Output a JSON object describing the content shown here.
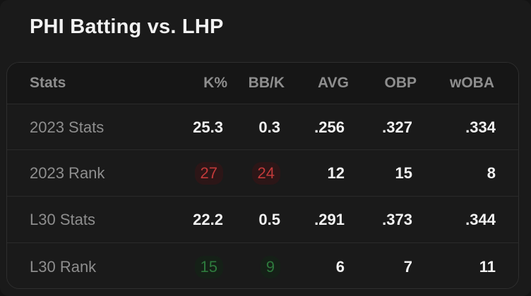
{
  "title": "PHI Batting vs. LHP",
  "columns": [
    "Stats",
    "K%",
    "BB/K",
    "AVG",
    "OBP",
    "wOBA"
  ],
  "rows": [
    {
      "label": "2023 Stats",
      "values": [
        "25.3",
        "0.3",
        ".256",
        ".327",
        ".334"
      ]
    },
    {
      "label": "2023 Rank",
      "values": [
        "27",
        "24",
        "12",
        "15",
        "8"
      ]
    },
    {
      "label": "L30 Stats",
      "values": [
        "22.2",
        "0.5",
        ".291",
        ".373",
        ".344"
      ]
    },
    {
      "label": "L30 Rank",
      "values": [
        "15",
        "9",
        "6",
        "7",
        "11"
      ]
    }
  ],
  "rank_highlights": {
    "2023 Rank": {
      "K%": "bad",
      "BB/K": "bad"
    },
    "L30 Rank": {
      "K%": "good",
      "BB/K": "good"
    }
  },
  "colors": {
    "background": "#1a1a1a",
    "bad_text": "#c23a3a",
    "good_text": "#2e7a3d",
    "value_text": "#f2f2f2",
    "label_text": "#8e8e8e"
  }
}
